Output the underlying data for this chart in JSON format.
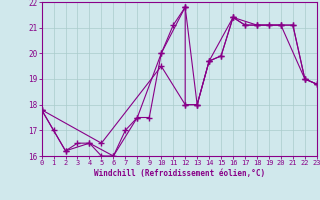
{
  "xlabel": "Windchill (Refroidissement éolien,°C)",
  "xlim": [
    0,
    23
  ],
  "ylim": [
    16,
    22
  ],
  "xticks": [
    0,
    1,
    2,
    3,
    4,
    5,
    6,
    7,
    8,
    9,
    10,
    11,
    12,
    13,
    14,
    15,
    16,
    17,
    18,
    19,
    20,
    21,
    22,
    23
  ],
  "yticks": [
    16,
    17,
    18,
    19,
    20,
    21,
    22
  ],
  "background_color": "#d0e8ec",
  "line_color": "#880088",
  "grid_color": "#aacccc",
  "line1": [
    [
      0,
      17.8
    ],
    [
      1,
      17.0
    ],
    [
      2,
      16.2
    ],
    [
      3,
      16.5
    ],
    [
      4,
      16.5
    ],
    [
      5,
      16.0
    ],
    [
      6,
      16.0
    ],
    [
      7,
      17.0
    ],
    [
      8,
      17.5
    ],
    [
      9,
      17.5
    ],
    [
      10,
      20.0
    ],
    [
      11,
      21.1
    ],
    [
      12,
      21.8
    ]
  ],
  "line2": [
    [
      12,
      21.8
    ],
    [
      12,
      18.0
    ],
    [
      13,
      18.0
    ],
    [
      14,
      19.7
    ],
    [
      15,
      19.9
    ],
    [
      16,
      21.4
    ],
    [
      17,
      21.1
    ],
    [
      18,
      21.1
    ],
    [
      19,
      21.1
    ],
    [
      20,
      21.1
    ],
    [
      21,
      21.1
    ],
    [
      22,
      19.0
    ],
    [
      23,
      18.8
    ]
  ],
  "line3": [
    [
      0,
      17.8
    ],
    [
      5,
      16.5
    ],
    [
      10,
      19.5
    ],
    [
      12,
      18.0
    ],
    [
      13,
      18.0
    ],
    [
      14,
      19.7
    ],
    [
      15,
      19.9
    ],
    [
      16,
      21.4
    ],
    [
      17,
      21.1
    ],
    [
      18,
      21.1
    ],
    [
      19,
      21.1
    ],
    [
      20,
      21.1
    ],
    [
      21,
      21.1
    ],
    [
      22,
      19.0
    ],
    [
      23,
      18.8
    ]
  ],
  "line4": [
    [
      0,
      17.8
    ],
    [
      2,
      16.2
    ],
    [
      4,
      16.5
    ],
    [
      6,
      16.0
    ],
    [
      8,
      17.5
    ],
    [
      10,
      20.0
    ],
    [
      12,
      21.8
    ],
    [
      13,
      18.0
    ],
    [
      14,
      19.7
    ],
    [
      16,
      21.4
    ],
    [
      18,
      21.1
    ],
    [
      20,
      21.1
    ],
    [
      22,
      19.0
    ],
    [
      23,
      18.8
    ]
  ]
}
